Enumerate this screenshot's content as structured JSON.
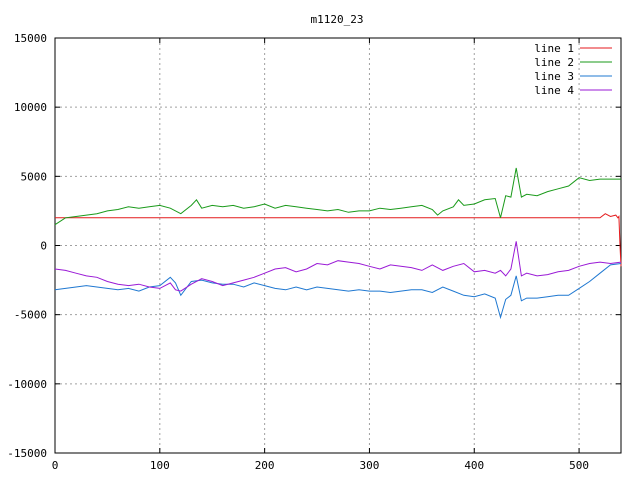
{
  "chart_data": {
    "type": "line",
    "title": "m1120_23",
    "xlabel": "",
    "ylabel": "",
    "xlim": [
      0,
      540
    ],
    "ylim": [
      -15000,
      15000
    ],
    "x_ticks": [
      0,
      100,
      200,
      300,
      400,
      500
    ],
    "y_ticks": [
      -15000,
      -10000,
      -5000,
      0,
      5000,
      10000,
      15000
    ],
    "grid": true,
    "legend_position": "top-right",
    "series": [
      {
        "name": "line 1",
        "color": "#e41a1c",
        "x": [
          0,
          50,
          100,
          150,
          200,
          250,
          300,
          350,
          400,
          450,
          500,
          520,
          525,
          530,
          535,
          537,
          538,
          539,
          540
        ],
        "y": [
          2000,
          2000,
          2000,
          2000,
          2000,
          2000,
          2000,
          2000,
          2000,
          2000,
          2000,
          2000,
          2300,
          2100,
          2200,
          2000,
          2100,
          0,
          -1500
        ]
      },
      {
        "name": "line 2",
        "color": "#1a9a1a",
        "x": [
          0,
          10,
          20,
          30,
          40,
          50,
          60,
          70,
          80,
          90,
          100,
          110,
          120,
          130,
          135,
          140,
          150,
          160,
          170,
          180,
          190,
          200,
          210,
          220,
          230,
          240,
          250,
          260,
          270,
          280,
          290,
          300,
          310,
          320,
          330,
          340,
          350,
          360,
          365,
          370,
          380,
          385,
          390,
          400,
          410,
          420,
          425,
          430,
          435,
          440,
          445,
          450,
          460,
          470,
          480,
          490,
          500,
          510,
          520,
          530,
          540
        ],
        "y": [
          1500,
          2000,
          2100,
          2200,
          2300,
          2500,
          2600,
          2800,
          2700,
          2800,
          2900,
          2700,
          2300,
          2900,
          3300,
          2700,
          2900,
          2800,
          2900,
          2700,
          2800,
          3000,
          2700,
          2900,
          2800,
          2700,
          2600,
          2500,
          2600,
          2400,
          2500,
          2500,
          2700,
          2600,
          2700,
          2800,
          2900,
          2600,
          2200,
          2500,
          2800,
          3300,
          2900,
          3000,
          3300,
          3400,
          2000,
          3600,
          3500,
          5600,
          3500,
          3700,
          3600,
          3900,
          4100,
          4300,
          4900,
          4700,
          4800,
          4800,
          4800
        ]
      },
      {
        "name": "line 3",
        "color": "#1f78d1",
        "x": [
          0,
          10,
          20,
          30,
          40,
          50,
          60,
          70,
          80,
          90,
          100,
          110,
          115,
          120,
          130,
          140,
          150,
          160,
          170,
          180,
          190,
          200,
          210,
          220,
          230,
          240,
          250,
          260,
          270,
          280,
          290,
          300,
          310,
          320,
          330,
          340,
          350,
          360,
          370,
          380,
          390,
          400,
          410,
          420,
          425,
          430,
          435,
          440,
          445,
          450,
          460,
          470,
          480,
          490,
          500,
          510,
          520,
          530,
          540
        ],
        "y": [
          -3200,
          -3100,
          -3000,
          -2900,
          -3000,
          -3100,
          -3200,
          -3100,
          -3300,
          -3000,
          -2900,
          -2300,
          -2700,
          -3600,
          -2600,
          -2500,
          -2700,
          -2800,
          -2800,
          -3000,
          -2700,
          -2900,
          -3100,
          -3200,
          -3000,
          -3200,
          -3000,
          -3100,
          -3200,
          -3300,
          -3200,
          -3300,
          -3300,
          -3400,
          -3300,
          -3200,
          -3200,
          -3400,
          -3000,
          -3300,
          -3600,
          -3700,
          -3500,
          -3800,
          -5200,
          -3900,
          -3600,
          -2200,
          -4000,
          -3800,
          -3800,
          -3700,
          -3600,
          -3600,
          -3100,
          -2600,
          -2000,
          -1400,
          -1300
        ]
      },
      {
        "name": "line 4",
        "color": "#9a1ad6",
        "x": [
          0,
          10,
          20,
          30,
          40,
          50,
          60,
          70,
          80,
          90,
          100,
          110,
          115,
          120,
          130,
          140,
          150,
          160,
          170,
          180,
          190,
          200,
          210,
          220,
          230,
          240,
          250,
          260,
          270,
          280,
          290,
          300,
          310,
          320,
          330,
          340,
          350,
          360,
          370,
          380,
          390,
          400,
          410,
          420,
          425,
          430,
          435,
          440,
          445,
          450,
          460,
          470,
          480,
          490,
          500,
          510,
          520,
          530,
          540
        ],
        "y": [
          -1700,
          -1800,
          -2000,
          -2200,
          -2300,
          -2600,
          -2800,
          -2900,
          -2800,
          -3000,
          -3100,
          -2700,
          -3200,
          -3300,
          -2800,
          -2400,
          -2600,
          -2900,
          -2700,
          -2500,
          -2300,
          -2000,
          -1700,
          -1600,
          -1900,
          -1700,
          -1300,
          -1400,
          -1100,
          -1200,
          -1300,
          -1500,
          -1700,
          -1400,
          -1500,
          -1600,
          -1800,
          -1400,
          -1800,
          -1500,
          -1300,
          -1900,
          -1800,
          -2000,
          -1800,
          -2200,
          -1700,
          300,
          -2200,
          -2000,
          -2200,
          -2100,
          -1900,
          -1800,
          -1500,
          -1300,
          -1200,
          -1300,
          -1200
        ]
      }
    ]
  }
}
